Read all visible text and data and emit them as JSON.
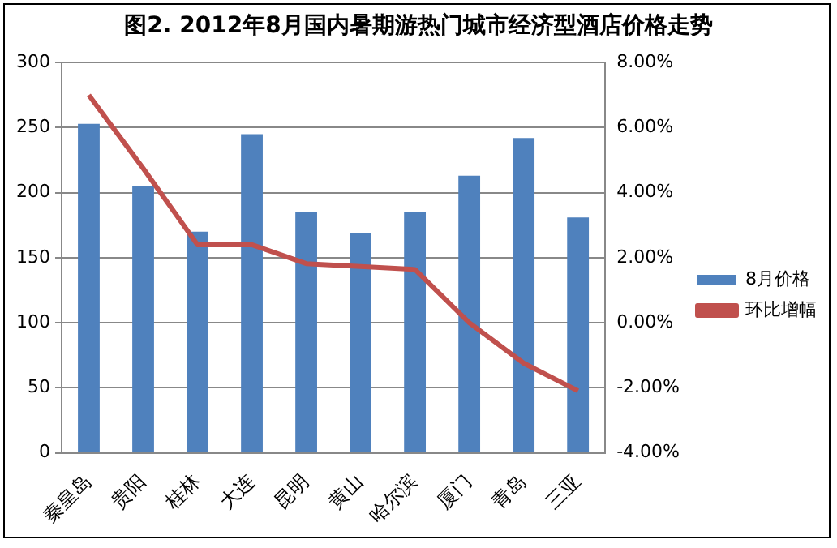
{
  "chart_data": {
    "type": "bar",
    "title": "图2. 2012年8月国内暑期游热门城市经济型酒店价格走势",
    "categories": [
      "秦皇岛",
      "贵阳",
      "桂林",
      "大连",
      "昆明",
      "黄山",
      "哈尔滨",
      "厦门",
      "青岛",
      "三亚"
    ],
    "series": [
      {
        "name": "8月价格",
        "color": "#4f81bd",
        "values": [
          253,
          205,
          170,
          245,
          185,
          169,
          185,
          213,
          242,
          181
        ]
      },
      {
        "name": "环比增幅",
        "type": "line",
        "axis": "y2",
        "color": "#c0504d",
        "values": [
          7.0,
          4.75,
          2.4,
          2.4,
          1.82,
          1.73,
          1.64,
          0.0,
          -1.24,
          -2.09
        ]
      }
    ],
    "ylim": [
      0,
      300
    ],
    "yticks": [
      0,
      50,
      100,
      150,
      200,
      250,
      300
    ],
    "y2lim": [
      -4,
      8
    ],
    "y2ticks": [
      {
        "value": -4,
        "label": "-4.00%"
      },
      {
        "value": -2,
        "label": "-2.00%"
      },
      {
        "value": 0,
        "label": "0.00%"
      },
      {
        "value": 2,
        "label": "2.00%"
      },
      {
        "value": 4,
        "label": "4.00%"
      },
      {
        "value": 6,
        "label": "6.00%"
      },
      {
        "value": 8,
        "label": "8.00%"
      }
    ],
    "grid": "y",
    "legend": "right",
    "marker": "none",
    "line_style": "solid"
  }
}
